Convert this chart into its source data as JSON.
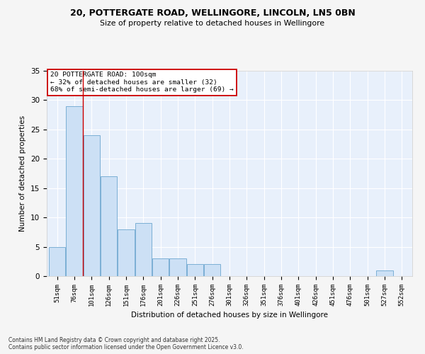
{
  "title_line1": "20, POTTERGATE ROAD, WELLINGORE, LINCOLN, LN5 0BN",
  "title_line2": "Size of property relative to detached houses in Wellingore",
  "xlabel": "Distribution of detached houses by size in Wellingore",
  "ylabel": "Number of detached properties",
  "bar_color": "#cce0f5",
  "bar_edge_color": "#7bafd4",
  "categories": [
    "51sqm",
    "76sqm",
    "101sqm",
    "126sqm",
    "151sqm",
    "176sqm",
    "201sqm",
    "226sqm",
    "251sqm",
    "276sqm",
    "301sqm",
    "326sqm",
    "351sqm",
    "376sqm",
    "401sqm",
    "426sqm",
    "451sqm",
    "476sqm",
    "501sqm",
    "527sqm",
    "552sqm"
  ],
  "values": [
    5,
    29,
    24,
    17,
    8,
    9,
    3,
    3,
    2,
    2,
    0,
    0,
    0,
    0,
    0,
    0,
    0,
    0,
    0,
    1,
    0
  ],
  "ylim": [
    0,
    35
  ],
  "yticks": [
    0,
    5,
    10,
    15,
    20,
    25,
    30,
    35
  ],
  "red_line_x": 1.5,
  "annotation_text": "20 POTTERGATE ROAD: 100sqm\n← 32% of detached houses are smaller (32)\n68% of semi-detached houses are larger (69) →",
  "annotation_box_color": "#ffffff",
  "annotation_border_color": "#cc0000",
  "bg_color": "#e8f0fb",
  "grid_color": "#ffffff",
  "fig_bg_color": "#f5f5f5",
  "footer_line1": "Contains HM Land Registry data © Crown copyright and database right 2025.",
  "footer_line2": "Contains public sector information licensed under the Open Government Licence v3.0."
}
